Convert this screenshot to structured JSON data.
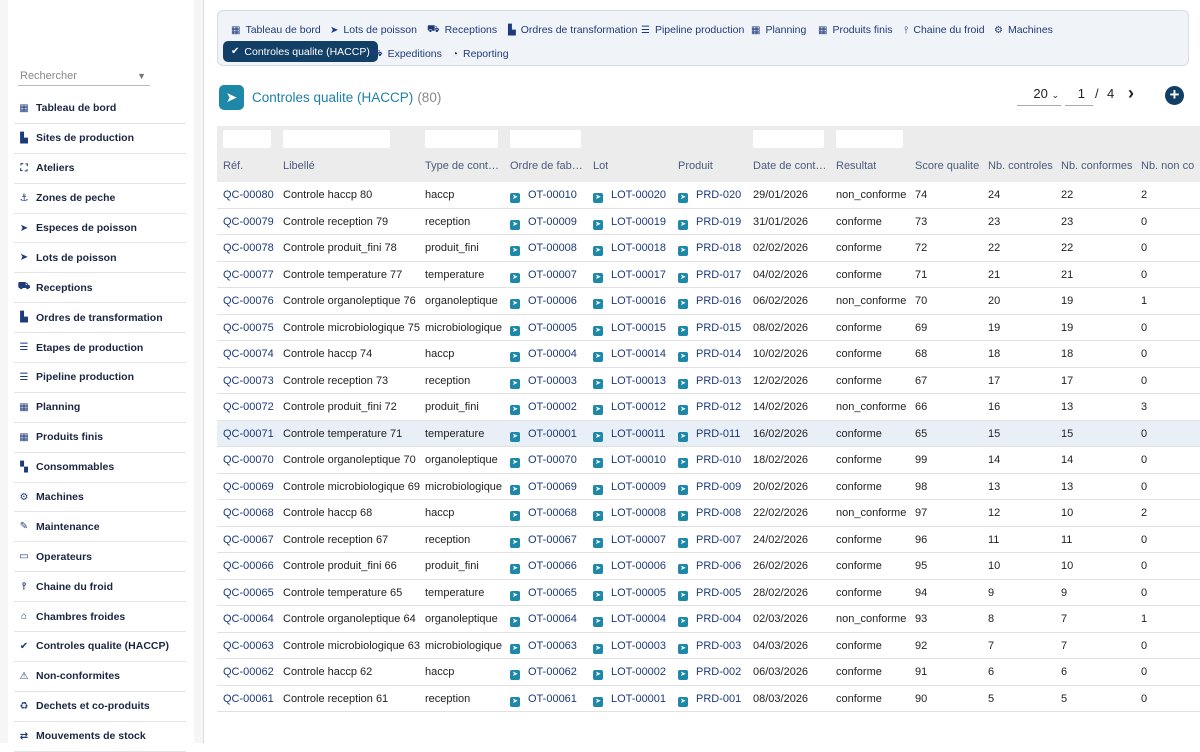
{
  "sidebar": {
    "search_placeholder": "Rechercher",
    "items": [
      {
        "label": "Tableau de bord",
        "icon": "grid-icon",
        "glyph": "▦"
      },
      {
        "label": "Sites de production",
        "icon": "factory-icon",
        "glyph": "▙"
      },
      {
        "label": "Ateliers",
        "icon": "network-icon",
        "glyph": "⛶"
      },
      {
        "label": "Zones de peche",
        "icon": "anchor-icon",
        "glyph": "⚓"
      },
      {
        "label": "Especes de poisson",
        "icon": "fish-icon",
        "glyph": "➤"
      },
      {
        "label": "Lots de poisson",
        "icon": "fish-icon",
        "glyph": "➤"
      },
      {
        "label": "Receptions",
        "icon": "truck-loading-icon",
        "glyph": "⛟"
      },
      {
        "label": "Ordres de transformation",
        "icon": "industry-icon",
        "glyph": "▙"
      },
      {
        "label": "Etapes de production",
        "icon": "list-icon",
        "glyph": "☰"
      },
      {
        "label": "Pipeline production",
        "icon": "bars-icon",
        "glyph": "☰"
      },
      {
        "label": "Planning",
        "icon": "calendar-icon",
        "glyph": "▦"
      },
      {
        "label": "Produits finis",
        "icon": "grid-icon",
        "glyph": "▦"
      },
      {
        "label": "Consommables",
        "icon": "boxes-icon",
        "glyph": "▚"
      },
      {
        "label": "Machines",
        "icon": "gears-icon",
        "glyph": "⚙"
      },
      {
        "label": "Maintenance",
        "icon": "wrench-icon",
        "glyph": "✎"
      },
      {
        "label": "Operateurs",
        "icon": "id-card-icon",
        "glyph": "▭"
      },
      {
        "label": "Chaine du froid",
        "icon": "thermometer-icon",
        "glyph": "⫯"
      },
      {
        "label": "Chambres froides",
        "icon": "warehouse-icon",
        "glyph": "⌂"
      },
      {
        "label": "Controles qualite (HACCP)",
        "icon": "clipboard-check-icon",
        "glyph": "✔"
      },
      {
        "label": "Non-conformites",
        "icon": "warning-icon",
        "glyph": "⚠"
      },
      {
        "label": "Dechets et co-produits",
        "icon": "recycle-icon",
        "glyph": "♻"
      },
      {
        "label": "Mouvements de stock",
        "icon": "exchange-icon",
        "glyph": "⇄"
      }
    ]
  },
  "topnav": {
    "tabs": [
      {
        "label": "Tableau de bord",
        "icon": "grid-icon",
        "glyph": "▦"
      },
      {
        "label": "Lots de poisson",
        "icon": "fish-icon",
        "glyph": "➤"
      },
      {
        "label": "Receptions",
        "icon": "truck-loading-icon",
        "glyph": "⛟"
      },
      {
        "label": "Ordres de transformation",
        "icon": "industry-icon",
        "glyph": "▙"
      },
      {
        "label": "Pipeline production",
        "icon": "bars-icon",
        "glyph": "☰"
      },
      {
        "label": "Planning",
        "icon": "calendar-icon",
        "glyph": "▦"
      },
      {
        "label": "Produits finis",
        "icon": "grid-icon",
        "glyph": "▦"
      },
      {
        "label": "Chaine du froid",
        "icon": "thermometer-icon",
        "glyph": "⫯"
      },
      {
        "label": "Machines",
        "icon": "gears-icon",
        "glyph": "⚙"
      },
      {
        "label": "Controles qualite (HACCP)",
        "icon": "clipboard-check-icon",
        "glyph": "✔",
        "active": true
      },
      {
        "label": "Expeditions",
        "icon": "truck-icon",
        "glyph": "⛟"
      },
      {
        "label": "Reporting",
        "icon": "pie-chart-icon",
        "glyph": "◔"
      }
    ]
  },
  "page": {
    "title": "Controles qualite (HACCP)",
    "count": "(80)",
    "per_page": "20",
    "current_page": "1",
    "page_sep": "/",
    "total_pages": "4",
    "next_glyph": "›",
    "add_glyph": "+"
  },
  "colors": {
    "accent": "#123f66",
    "link": "#1d3a7a",
    "title": "#1f7fa8",
    "row_highlight": "#e9eff6"
  },
  "table": {
    "headers": [
      "Réf.",
      "Libellé",
      "Type de cont…",
      "Ordre de fab…",
      "Lot",
      "Produit",
      "Date de cont…",
      "Resultat",
      "Score qualite",
      "Nb. controles",
      "Nb. conformes",
      "Nb. non co"
    ],
    "rows": [
      [
        "QC-00080",
        "Controle haccp 80",
        "haccp",
        "OT-00010",
        "LOT-00020",
        "PRD-020",
        "29/01/2026",
        "non_conforme",
        "74",
        "24",
        "22",
        "2"
      ],
      [
        "QC-00079",
        "Controle reception 79",
        "reception",
        "OT-00009",
        "LOT-00019",
        "PRD-019",
        "31/01/2026",
        "conforme",
        "73",
        "23",
        "23",
        "0"
      ],
      [
        "QC-00078",
        "Controle produit_fini 78",
        "produit_fini",
        "OT-00008",
        "LOT-00018",
        "PRD-018",
        "02/02/2026",
        "conforme",
        "72",
        "22",
        "22",
        "0"
      ],
      [
        "QC-00077",
        "Controle temperature 77",
        "temperature",
        "OT-00007",
        "LOT-00017",
        "PRD-017",
        "04/02/2026",
        "conforme",
        "71",
        "21",
        "21",
        "0"
      ],
      [
        "QC-00076",
        "Controle organoleptique 76",
        "organoleptique",
        "OT-00006",
        "LOT-00016",
        "PRD-016",
        "06/02/2026",
        "non_conforme",
        "70",
        "20",
        "19",
        "1"
      ],
      [
        "QC-00075",
        "Controle microbiologique 75",
        "microbiologique",
        "OT-00005",
        "LOT-00015",
        "PRD-015",
        "08/02/2026",
        "conforme",
        "69",
        "19",
        "19",
        "0"
      ],
      [
        "QC-00074",
        "Controle haccp 74",
        "haccp",
        "OT-00004",
        "LOT-00014",
        "PRD-014",
        "10/02/2026",
        "conforme",
        "68",
        "18",
        "18",
        "0"
      ],
      [
        "QC-00073",
        "Controle reception 73",
        "reception",
        "OT-00003",
        "LOT-00013",
        "PRD-013",
        "12/02/2026",
        "conforme",
        "67",
        "17",
        "17",
        "0"
      ],
      [
        "QC-00072",
        "Controle produit_fini 72",
        "produit_fini",
        "OT-00002",
        "LOT-00012",
        "PRD-012",
        "14/02/2026",
        "non_conforme",
        "66",
        "16",
        "13",
        "3"
      ],
      [
        "QC-00071",
        "Controle temperature 71",
        "temperature",
        "OT-00001",
        "LOT-00011",
        "PRD-011",
        "16/02/2026",
        "conforme",
        "65",
        "15",
        "15",
        "0"
      ],
      [
        "QC-00070",
        "Controle organoleptique 70",
        "organoleptique",
        "OT-00070",
        "LOT-00010",
        "PRD-010",
        "18/02/2026",
        "conforme",
        "99",
        "14",
        "14",
        "0"
      ],
      [
        "QC-00069",
        "Controle microbiologique 69",
        "microbiologique",
        "OT-00069",
        "LOT-00009",
        "PRD-009",
        "20/02/2026",
        "conforme",
        "98",
        "13",
        "13",
        "0"
      ],
      [
        "QC-00068",
        "Controle haccp 68",
        "haccp",
        "OT-00068",
        "LOT-00008",
        "PRD-008",
        "22/02/2026",
        "non_conforme",
        "97",
        "12",
        "10",
        "2"
      ],
      [
        "QC-00067",
        "Controle reception 67",
        "reception",
        "OT-00067",
        "LOT-00007",
        "PRD-007",
        "24/02/2026",
        "conforme",
        "96",
        "11",
        "11",
        "0"
      ],
      [
        "QC-00066",
        "Controle produit_fini 66",
        "produit_fini",
        "OT-00066",
        "LOT-00006",
        "PRD-006",
        "26/02/2026",
        "conforme",
        "95",
        "10",
        "10",
        "0"
      ],
      [
        "QC-00065",
        "Controle temperature 65",
        "temperature",
        "OT-00065",
        "LOT-00005",
        "PRD-005",
        "28/02/2026",
        "conforme",
        "94",
        "9",
        "9",
        "0"
      ],
      [
        "QC-00064",
        "Controle organoleptique 64",
        "organoleptique",
        "OT-00064",
        "LOT-00004",
        "PRD-004",
        "02/03/2026",
        "non_conforme",
        "93",
        "8",
        "7",
        "1"
      ],
      [
        "QC-00063",
        "Controle microbiologique 63",
        "microbiologique",
        "OT-00063",
        "LOT-00003",
        "PRD-003",
        "04/03/2026",
        "conforme",
        "92",
        "7",
        "7",
        "0"
      ],
      [
        "QC-00062",
        "Controle haccp 62",
        "haccp",
        "OT-00062",
        "LOT-00002",
        "PRD-002",
        "06/03/2026",
        "conforme",
        "91",
        "6",
        "6",
        "0"
      ],
      [
        "QC-00061",
        "Controle reception 61",
        "reception",
        "OT-00061",
        "LOT-00001",
        "PRD-001",
        "08/03/2026",
        "conforme",
        "90",
        "5",
        "5",
        "0"
      ]
    ],
    "highlighted_row": 9
  }
}
